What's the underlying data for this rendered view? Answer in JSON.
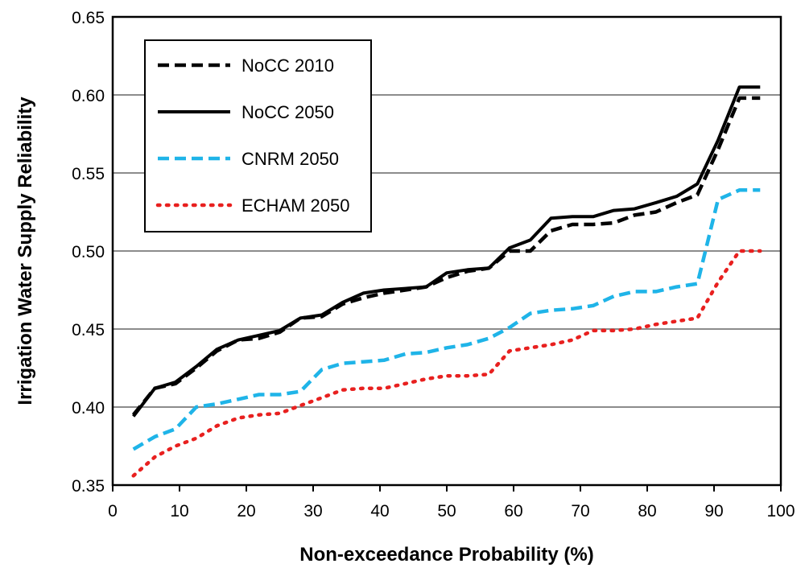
{
  "chart_data": {
    "type": "line",
    "title": "",
    "xlabel": "Non-exceedance Probability (%)",
    "ylabel": "Irrigation Water Supply Reliability",
    "xlim": [
      0,
      100
    ],
    "ylim": [
      0.35,
      0.65
    ],
    "xticks": [
      "0",
      "10",
      "20",
      "30",
      "40",
      "50",
      "60",
      "70",
      "80",
      "90",
      "100"
    ],
    "yticks": [
      "0.35",
      "0.40",
      "0.45",
      "0.50",
      "0.55",
      "0.60",
      "0.65"
    ],
    "grid": "horizontal",
    "legend_position": "top-left",
    "x": [
      3.1,
      6.3,
      9.4,
      12.5,
      15.6,
      18.8,
      21.9,
      25.0,
      28.1,
      31.3,
      34.4,
      37.5,
      40.6,
      43.8,
      46.9,
      50.0,
      53.1,
      56.3,
      59.4,
      62.5,
      65.6,
      68.8,
      71.9,
      75.0,
      78.1,
      81.3,
      84.4,
      87.5,
      90.6,
      93.8,
      96.9
    ],
    "series": [
      {
        "name": "NoCC 2010",
        "color": "#000000",
        "style": "dashed",
        "values": [
          0.395,
          0.412,
          0.415,
          0.425,
          0.436,
          0.443,
          0.444,
          0.448,
          0.457,
          0.458,
          0.466,
          0.47,
          0.473,
          0.475,
          0.477,
          0.483,
          0.487,
          0.489,
          0.5,
          0.5,
          0.513,
          0.517,
          0.517,
          0.518,
          0.523,
          0.525,
          0.531,
          0.536,
          0.565,
          0.598,
          0.598
        ]
      },
      {
        "name": "NoCC 2050",
        "color": "#000000",
        "style": "solid",
        "values": [
          0.394,
          0.412,
          0.416,
          0.426,
          0.437,
          0.443,
          0.446,
          0.449,
          0.457,
          0.459,
          0.467,
          0.473,
          0.475,
          0.476,
          0.477,
          0.486,
          0.488,
          0.489,
          0.502,
          0.507,
          0.521,
          0.522,
          0.522,
          0.526,
          0.527,
          0.531,
          0.535,
          0.543,
          0.571,
          0.605,
          0.605
        ]
      },
      {
        "name": "CNRM 2050",
        "color": "#1fb4e8",
        "style": "dashed",
        "values": [
          0.373,
          0.381,
          0.386,
          0.4,
          0.402,
          0.405,
          0.408,
          0.408,
          0.41,
          0.424,
          0.428,
          0.429,
          0.43,
          0.434,
          0.435,
          0.438,
          0.44,
          0.444,
          0.451,
          0.46,
          0.462,
          0.463,
          0.465,
          0.471,
          0.474,
          0.474,
          0.477,
          0.479,
          0.533,
          0.539,
          0.539
        ]
      },
      {
        "name": "ECHAM 2050",
        "color": "#e8201f",
        "style": "dotted",
        "values": [
          0.356,
          0.368,
          0.375,
          0.38,
          0.388,
          0.393,
          0.395,
          0.396,
          0.401,
          0.406,
          0.411,
          0.412,
          0.412,
          0.415,
          0.418,
          0.42,
          0.42,
          0.421,
          0.436,
          0.438,
          0.44,
          0.443,
          0.449,
          0.449,
          0.45,
          0.453,
          0.455,
          0.457,
          0.48,
          0.5,
          0.5
        ]
      }
    ]
  }
}
